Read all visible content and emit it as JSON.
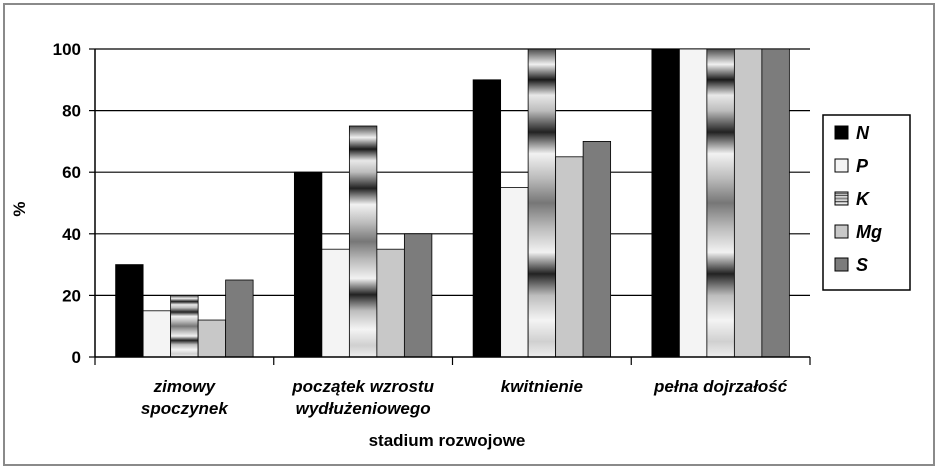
{
  "chart_data": {
    "type": "bar",
    "categories": [
      [
        "zimowy",
        "spoczynek"
      ],
      [
        "początek wzrostu",
        "wydłużeniowego"
      ],
      [
        "kwitnienie"
      ],
      [
        "pełna dojrzałość"
      ]
    ],
    "series": [
      {
        "name": "N",
        "values": [
          30,
          60,
          90,
          100
        ],
        "color": "#000000",
        "pattern": "solid"
      },
      {
        "name": "P",
        "values": [
          15,
          35,
          55,
          100
        ],
        "color": "#f4f4f4",
        "pattern": "solid"
      },
      {
        "name": "K",
        "values": [
          20,
          75,
          100,
          100
        ],
        "color": "#9a9a9a",
        "pattern": "banded"
      },
      {
        "name": "Mg",
        "values": [
          12,
          35,
          65,
          100
        ],
        "color": "#c8c8c8",
        "pattern": "solid"
      },
      {
        "name": "S",
        "values": [
          25,
          40,
          70,
          100
        ],
        "color": "#7c7c7c",
        "pattern": "solid"
      }
    ],
    "yticks": [
      0,
      20,
      40,
      60,
      80,
      100
    ],
    "ylim": [
      0,
      100
    ],
    "ylabel": "%",
    "xlabel": "stadium rozwojowe",
    "grid": true,
    "legend": "right"
  }
}
